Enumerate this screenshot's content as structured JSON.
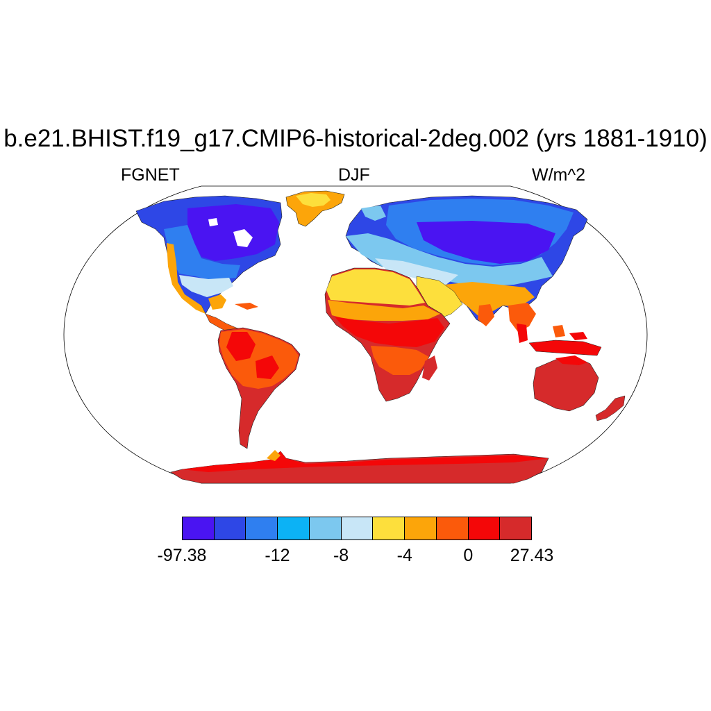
{
  "header": {
    "title": "b.e21.BHIST.f19_g17.CMIP6-historical-2deg.002 (yrs 1881-1910)",
    "left_label": "FGNET",
    "center_label": "DJF",
    "right_label": "W/m^2"
  },
  "colorbar": {
    "colors": [
      "#4a14f2",
      "#2e47e6",
      "#2f7ff0",
      "#0cb2f5",
      "#7cc8ef",
      "#c8e6f7",
      "#fddf3c",
      "#fca50a",
      "#fb5a0b",
      "#f40708",
      "#d62a2b"
    ],
    "labels": [
      {
        "text": "-97.38",
        "boundary": 0
      },
      {
        "text": "-12",
        "boundary": 3
      },
      {
        "text": "-8",
        "boundary": 5
      },
      {
        "text": "-4",
        "boundary": 7
      },
      {
        "text": "0",
        "boundary": 9
      },
      {
        "text": "27.43",
        "boundary": 11
      }
    ]
  },
  "map": {
    "projection": "robinson",
    "variable": "FGNET",
    "season": "DJF",
    "units": "W/m^2"
  }
}
